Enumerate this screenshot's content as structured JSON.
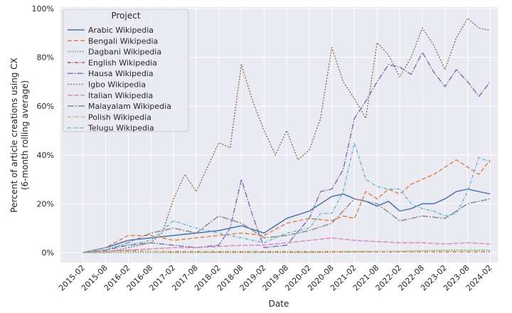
{
  "chart_data": {
    "type": "line",
    "title": "",
    "xlabel": "Date",
    "ylabel_line1": "Percent of article creations using CX",
    "ylabel_line2": "(6-month rolling average)",
    "ylim": [
      0,
      100
    ],
    "yticks": [
      0,
      20,
      40,
      60,
      80,
      100
    ],
    "ytick_labels": [
      "0%",
      "20%",
      "40%",
      "60%",
      "80%",
      "100%"
    ],
    "xlim": [
      "2014-08",
      "2024-04"
    ],
    "xticks": [
      "2015-02",
      "2015-08",
      "2016-02",
      "2016-08",
      "2017-02",
      "2017-08",
      "2018-02",
      "2018-08",
      "2019-02",
      "2019-08",
      "2020-02",
      "2020-08",
      "2021-02",
      "2021-08",
      "2022-02",
      "2022-08",
      "2023-02",
      "2023-08",
      "2024-02"
    ],
    "legend_title": "Project",
    "legend_position": "top-left",
    "grid": true,
    "series": [
      {
        "name": "Arabic Wikipedia",
        "color": "#4c72b0",
        "dash": "solid",
        "x": [
          "2015-02",
          "2015-08",
          "2016-02",
          "2016-08",
          "2017-02",
          "2017-08",
          "2018-02",
          "2018-08",
          "2019-02",
          "2019-08",
          "2020-02",
          "2020-08",
          "2020-11",
          "2021-02",
          "2021-05",
          "2021-08",
          "2021-11",
          "2022-02",
          "2022-05",
          "2022-08",
          "2022-11",
          "2023-02",
          "2023-05",
          "2023-08",
          "2023-11",
          "2024-02"
        ],
        "y": [
          0,
          2,
          5,
          6,
          7,
          8,
          9,
          11,
          8,
          14,
          17,
          23,
          24,
          22,
          21,
          19,
          21,
          17,
          18,
          20,
          20,
          22,
          25,
          26,
          25,
          24
        ]
      },
      {
        "name": "Bengali Wikipedia",
        "color": "#dd8452",
        "dash": "6,3",
        "x": [
          "2015-02",
          "2015-08",
          "2016-02",
          "2016-08",
          "2017-02",
          "2017-08",
          "2018-02",
          "2018-08",
          "2019-02",
          "2019-08",
          "2020-02",
          "2020-08",
          "2020-11",
          "2021-02",
          "2021-05",
          "2021-08",
          "2021-11",
          "2022-02",
          "2022-05",
          "2022-08",
          "2022-11",
          "2023-02",
          "2023-05",
          "2023-08",
          "2023-11",
          "2024-02"
        ],
        "y": [
          0,
          2,
          7,
          7,
          5,
          6,
          7,
          8,
          7,
          12,
          14,
          13,
          15,
          14,
          25,
          22,
          26,
          24,
          28,
          30,
          32,
          35,
          38,
          35,
          32,
          38
        ]
      },
      {
        "name": "Dagbani Wikipedia",
        "color": "#55a868",
        "dash": "1.5,2",
        "x": [
          "2015-02",
          "2016-02",
          "2017-02",
          "2018-02",
          "2019-02",
          "2020-02",
          "2021-02",
          "2022-02",
          "2023-02",
          "2023-08",
          "2024-02"
        ],
        "y": [
          0,
          0,
          0,
          0,
          0,
          0,
          0.3,
          0.5,
          1,
          1,
          1
        ]
      },
      {
        "name": "English Wikipedia",
        "color": "#c44e52",
        "dash": "5,2,1,2",
        "x": [
          "2015-02",
          "2015-08",
          "2016-02",
          "2016-08",
          "2017-02",
          "2017-08",
          "2018-02",
          "2019-02",
          "2020-02",
          "2021-02",
          "2022-02",
          "2023-02",
          "2024-02"
        ],
        "y": [
          0,
          0.5,
          0.8,
          0.5,
          0.3,
          0.3,
          0.3,
          0.3,
          0.3,
          0.3,
          0.3,
          0.3,
          0.3
        ]
      },
      {
        "name": "Hausa Wikipedia",
        "color": "#8172b3",
        "dash": "8,2,1.5,2",
        "x": [
          "2015-02",
          "2015-08",
          "2016-02",
          "2016-08",
          "2017-02",
          "2017-08",
          "2018-02",
          "2018-05",
          "2018-08",
          "2018-11",
          "2019-02",
          "2019-08",
          "2020-02",
          "2020-05",
          "2020-08",
          "2020-11",
          "2021-02",
          "2021-05",
          "2021-08",
          "2021-11",
          "2022-02",
          "2022-05",
          "2022-08",
          "2022-11",
          "2023-02",
          "2023-05",
          "2023-08",
          "2023-11",
          "2024-02"
        ],
        "y": [
          0,
          1,
          3,
          4,
          3,
          2,
          3,
          10,
          30,
          15,
          2,
          3,
          14,
          25,
          26,
          34,
          55,
          62,
          70,
          77,
          76,
          73,
          82,
          74,
          68,
          75,
          70,
          64,
          70
        ]
      },
      {
        "name": "Igbo Wikipedia",
        "color": "#937860",
        "dash": "2,2",
        "x": [
          "2015-02",
          "2015-08",
          "2016-02",
          "2016-08",
          "2016-11",
          "2017-02",
          "2017-05",
          "2017-08",
          "2017-11",
          "2018-02",
          "2018-05",
          "2018-08",
          "2018-11",
          "2019-02",
          "2019-05",
          "2019-08",
          "2019-11",
          "2020-02",
          "2020-05",
          "2020-08",
          "2020-11",
          "2021-02",
          "2021-05",
          "2021-08",
          "2021-11",
          "2022-02",
          "2022-05",
          "2022-08",
          "2022-11",
          "2023-02",
          "2023-05",
          "2023-08",
          "2023-11",
          "2024-02"
        ],
        "y": [
          0,
          0,
          2,
          4,
          8,
          22,
          32,
          25,
          35,
          45,
          43,
          77,
          62,
          50,
          40,
          50,
          38,
          42,
          55,
          84,
          70,
          63,
          55,
          86,
          81,
          72,
          80,
          92,
          85,
          75,
          88,
          96,
          92,
          91
        ]
      },
      {
        "name": "Italian Wikipedia",
        "color": "#da8bc3",
        "dash": "7,2",
        "x": [
          "2015-02",
          "2015-08",
          "2016-02",
          "2016-08",
          "2017-02",
          "2017-08",
          "2018-02",
          "2018-08",
          "2019-02",
          "2019-08",
          "2020-02",
          "2020-08",
          "2021-02",
          "2021-08",
          "2022-02",
          "2022-08",
          "2023-02",
          "2023-08",
          "2024-02"
        ],
        "y": [
          0,
          0.5,
          1,
          1.5,
          2,
          2,
          2.5,
          3,
          3,
          4,
          5,
          6,
          5,
          4.5,
          4,
          4,
          3.5,
          4,
          3.5
        ]
      },
      {
        "name": "Malayalam Wikipedia",
        "color": "#8c8c8c",
        "dash": "9,2,2,2",
        "x": [
          "2015-02",
          "2015-08",
          "2016-02",
          "2016-08",
          "2017-02",
          "2017-08",
          "2018-02",
          "2018-08",
          "2019-02",
          "2019-08",
          "2020-02",
          "2020-08",
          "2021-02",
          "2021-08",
          "2022-02",
          "2022-08",
          "2023-02",
          "2023-08",
          "2024-02"
        ],
        "y": [
          0,
          1,
          4,
          8,
          10,
          8,
          15,
          12,
          6,
          7,
          9,
          12,
          22,
          20,
          13,
          15,
          14,
          20,
          22
        ]
      },
      {
        "name": "Polish Wikipedia",
        "color": "#ccb974",
        "dash": "5,2,1,2",
        "x": [
          "2015-02",
          "2016-02",
          "2017-02",
          "2018-02",
          "2019-02",
          "2020-02",
          "2021-02",
          "2022-02",
          "2023-02",
          "2024-02"
        ],
        "y": [
          0,
          0.5,
          0.5,
          0.5,
          0.5,
          0.5,
          0.5,
          0.5,
          0.5,
          0.5
        ]
      },
      {
        "name": "Telugu Wikipedia",
        "color": "#64b5cd",
        "dash": "4,2,1,2",
        "x": [
          "2015-02",
          "2015-08",
          "2016-02",
          "2016-08",
          "2017-02",
          "2017-08",
          "2018-02",
          "2018-08",
          "2019-02",
          "2019-08",
          "2020-02",
          "2020-05",
          "2020-08",
          "2020-11",
          "2021-02",
          "2021-05",
          "2021-08",
          "2021-11",
          "2022-02",
          "2022-05",
          "2022-08",
          "2022-11",
          "2023-02",
          "2023-05",
          "2023-08",
          "2023-11",
          "2024-02"
        ],
        "y": [
          0,
          2,
          3,
          5,
          13,
          10,
          8,
          6,
          4,
          8,
          10,
          16,
          16,
          25,
          45,
          30,
          27,
          26,
          26,
          20,
          18,
          17,
          15,
          16,
          25,
          39,
          37
        ]
      }
    ]
  }
}
